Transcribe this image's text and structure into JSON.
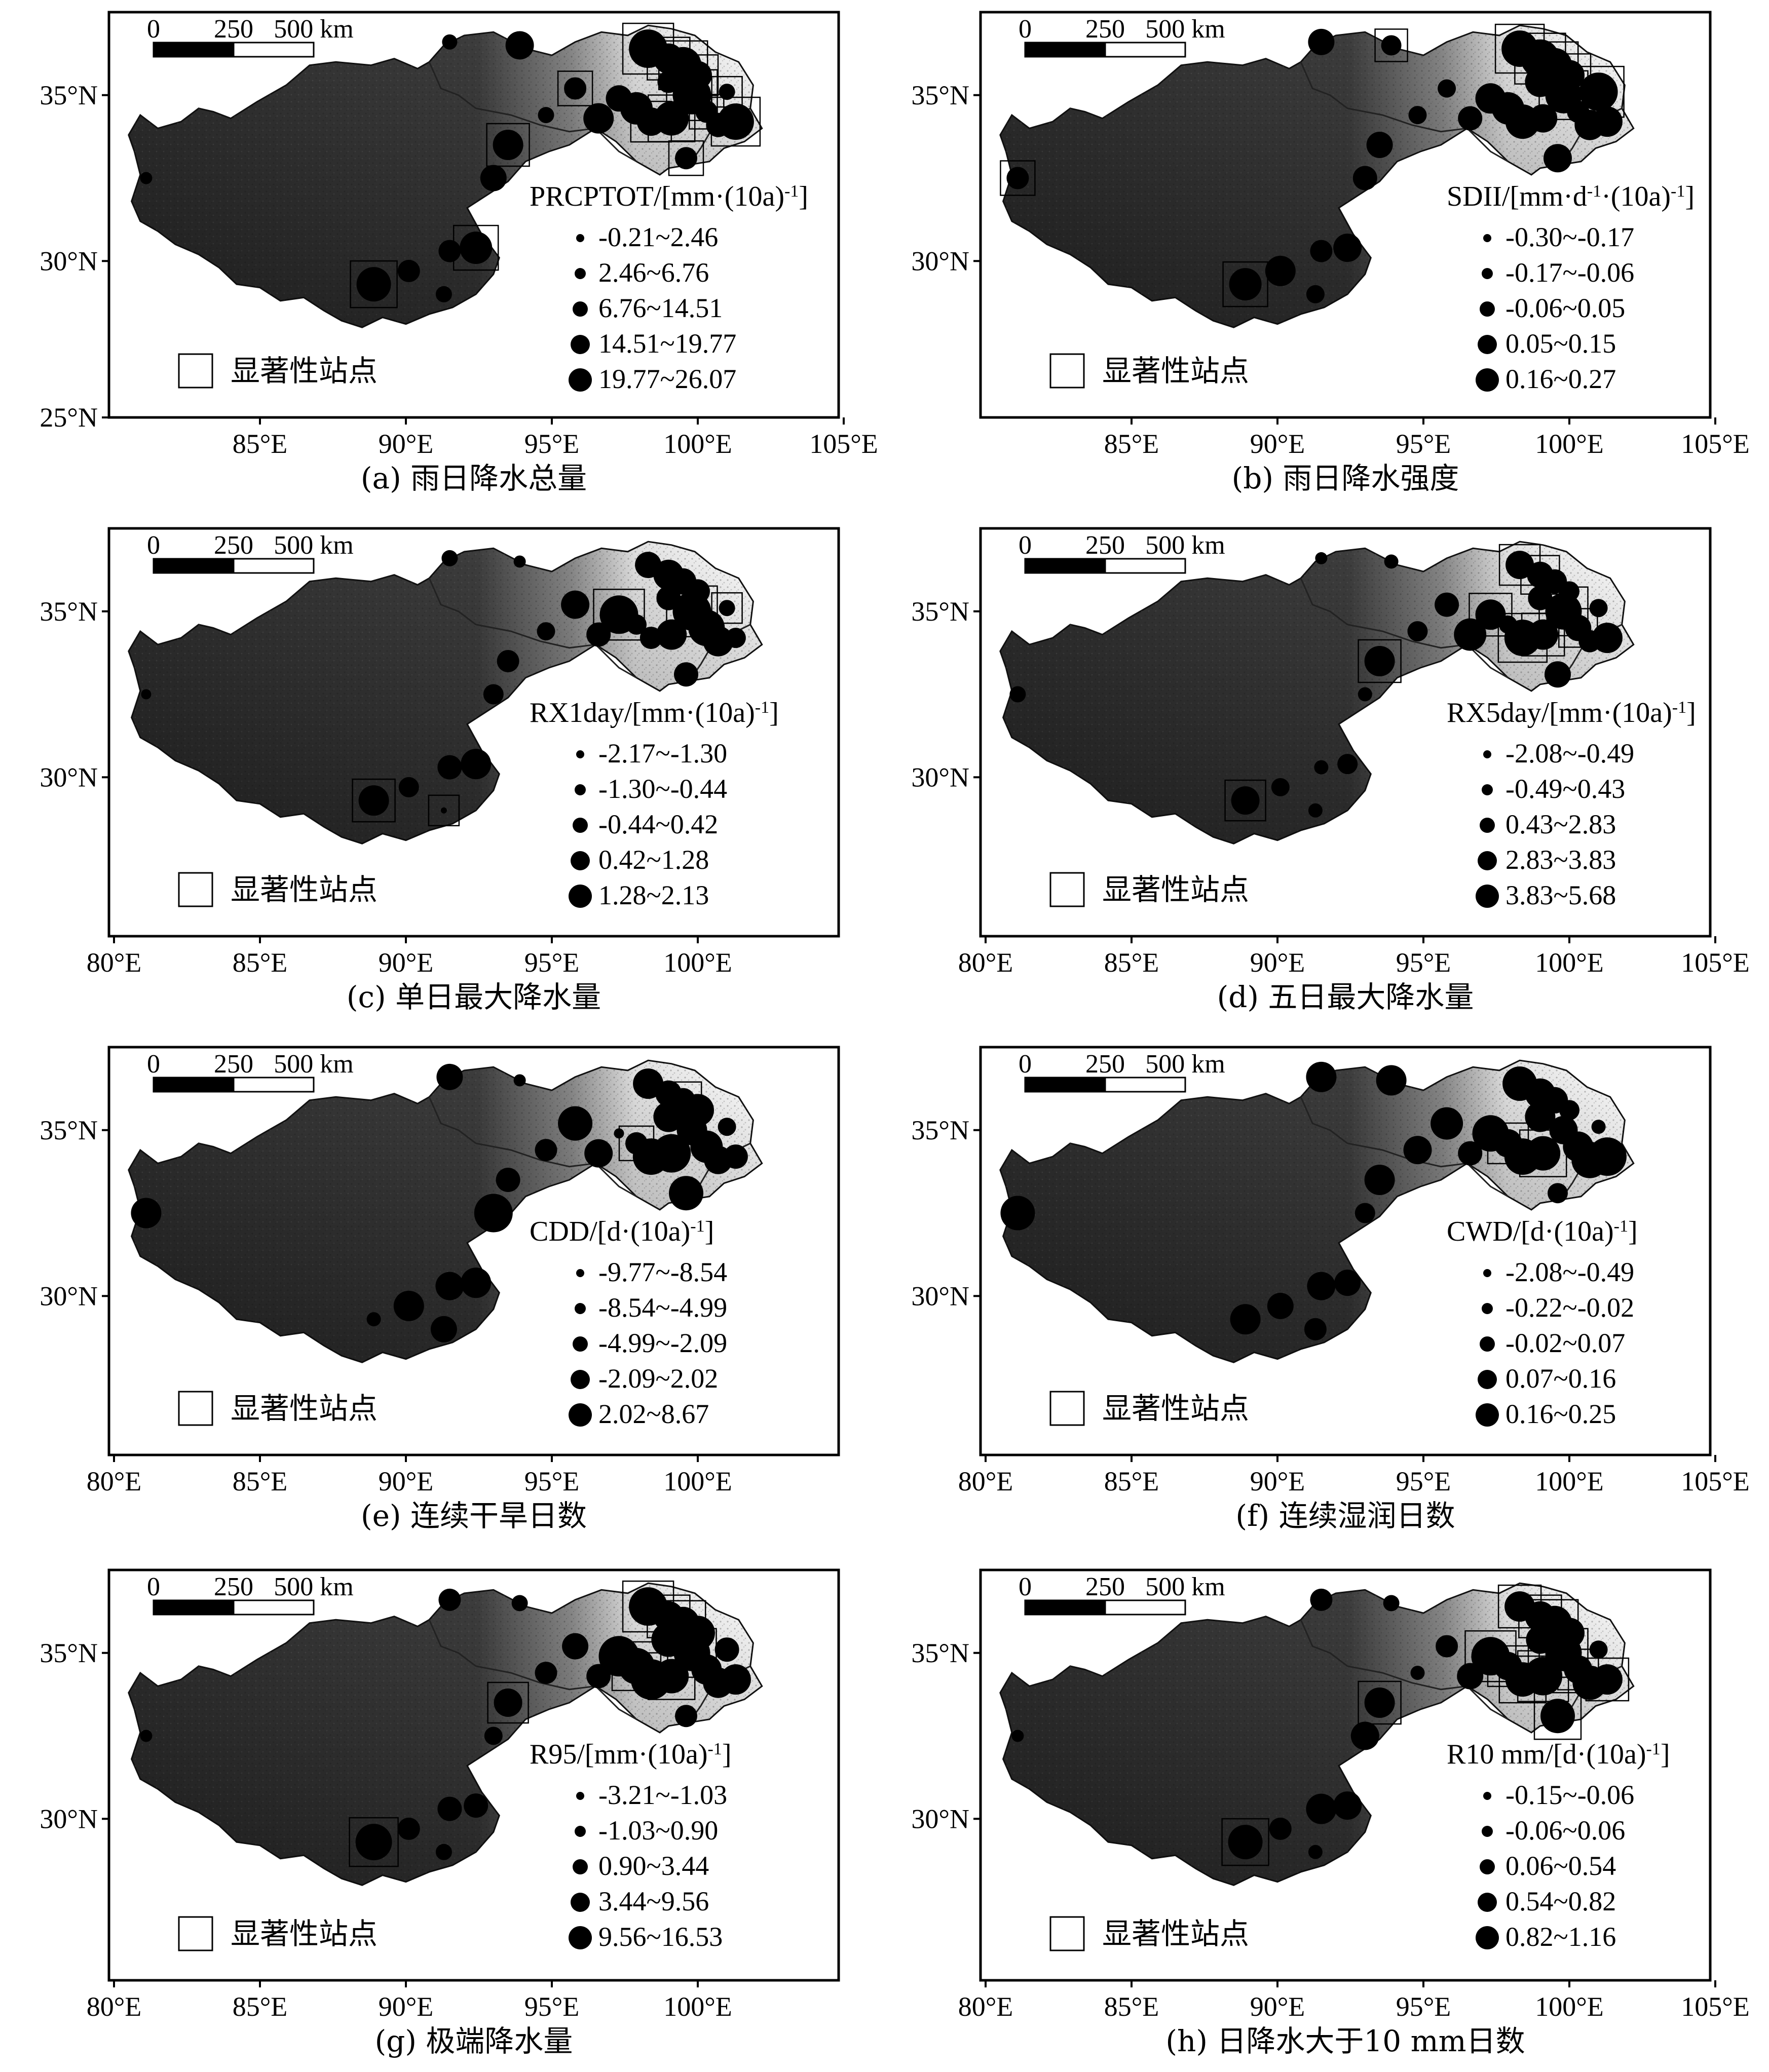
{
  "scale_bar": {
    "ticks": [
      "0",
      "250",
      "500 km"
    ]
  },
  "legend_marker_label": "显著性站点",
  "panels": [
    {
      "id": "a",
      "caption": "(a) 雨日降水总量",
      "index_label": "PRCPTOT/[mm·(10a)",
      "unit_sup": "-1",
      "unit_tail": "]",
      "classes": [
        "-0.21~2.46",
        "2.46~6.76",
        "6.76~14.51",
        "14.51~19.77",
        "19.77~26.07"
      ],
      "x_ticks": [
        "85°E",
        "90°E",
        "95°E",
        "100°E",
        "105°E"
      ],
      "y_ticks": [
        "35°N",
        "30°N",
        "25°N"
      ]
    },
    {
      "id": "b",
      "caption": "(b) 雨日降水强度",
      "index_label": "SDII/[mm·d",
      "unit_mid_sup": "-1",
      "unit_mid": "·(10a)",
      "unit_sup": "-1",
      "unit_tail": "]",
      "classes": [
        "-0.30~-0.17",
        "-0.17~-0.06",
        "-0.06~0.05",
        "0.05~0.15",
        "0.16~0.27"
      ],
      "x_ticks": [
        "85°E",
        "90°E",
        "95°E",
        "100°E",
        "105°E"
      ],
      "y_ticks": [
        "35°N",
        "30°N"
      ]
    },
    {
      "id": "c",
      "caption": "(c) 单日最大降水量",
      "index_label": "RX1day/[mm·(10a)",
      "unit_sup": "-1",
      "unit_tail": "]",
      "classes": [
        "-2.17~-1.30",
        "-1.30~-0.44",
        "-0.44~0.42",
        "0.42~1.28",
        "1.28~2.13"
      ],
      "x_ticks": [
        "80°E",
        "85°E",
        "90°E",
        "95°E",
        "100°E"
      ],
      "y_ticks": [
        "35°N",
        "30°N"
      ]
    },
    {
      "id": "d",
      "caption": "(d) 五日最大降水量",
      "index_label": "RX5day/[mm·(10a)",
      "unit_sup": "-1",
      "unit_tail": "]",
      "classes": [
        "-2.08~-0.49",
        "-0.49~0.43",
        "0.43~2.83",
        "2.83~3.83",
        "3.83~5.68"
      ],
      "x_ticks": [
        "80°E",
        "85°E",
        "90°E",
        "95°E",
        "100°E",
        "105°E"
      ],
      "y_ticks": [
        "35°N",
        "30°N"
      ]
    },
    {
      "id": "e",
      "caption": "(e) 连续干旱日数",
      "index_label": "CDD/[d·(10a)",
      "unit_sup": "-1",
      "unit_tail": "]",
      "classes": [
        "-9.77~-8.54",
        "-8.54~-4.99",
        "-4.99~-2.09",
        "-2.09~2.02",
        "2.02~8.67"
      ],
      "x_ticks": [
        "80°E",
        "85°E",
        "90°E",
        "95°E",
        "100°E"
      ],
      "y_ticks": [
        "35°N",
        "30°N"
      ]
    },
    {
      "id": "f",
      "caption": "(f) 连续湿润日数",
      "index_label": "CWD/[d·(10a)",
      "unit_sup": "-1",
      "unit_tail": "]",
      "classes": [
        "-2.08~-0.49",
        "-0.22~-0.02",
        "-0.02~0.07",
        "0.07~0.16",
        "0.16~0.25"
      ],
      "x_ticks": [
        "80°E",
        "85°E",
        "90°E",
        "95°E",
        "100°E",
        "105°E"
      ],
      "y_ticks": [
        "35°N",
        "30°N"
      ]
    },
    {
      "id": "g",
      "caption": "(g) 极端降水量",
      "index_label": "R95/[mm·(10a)",
      "unit_sup": "-1",
      "unit_tail": "]",
      "classes": [
        "-3.21~-1.03",
        "-1.03~0.90",
        "0.90~3.44",
        "3.44~9.56",
        "9.56~16.53"
      ],
      "x_ticks": [
        "80°E",
        "85°E",
        "90°E",
        "95°E",
        "100°E"
      ],
      "y_ticks": [
        "35°N",
        "30°N"
      ]
    },
    {
      "id": "h",
      "caption": "(h) 日降水大于10 mm日数",
      "index_label": "R10 mm/[d·(10a)",
      "unit_sup": "-1",
      "unit_tail": "]",
      "classes": [
        "-0.15~-0.06",
        "-0.06~0.06",
        "0.06~0.54",
        "0.54~0.82",
        "0.82~1.16"
      ],
      "x_ticks": [
        "80°E",
        "85°E",
        "90°E",
        "95°E",
        "100°E",
        "105°E"
      ],
      "y_ticks": [
        "35°N",
        "30°N"
      ]
    }
  ]
}
